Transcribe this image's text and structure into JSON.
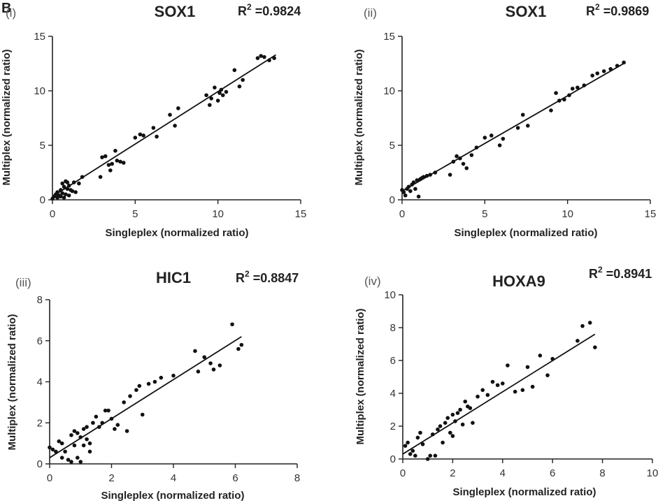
{
  "panel_letter": "B",
  "chart_data": [
    {
      "type": "scatter",
      "panel": "(i)",
      "title": "SOX1",
      "r2_label": "R",
      "r2_exp": "2",
      "r2_value": " =0.9824",
      "xlabel": "Singleplex (normalized ratio)",
      "ylabel": "Multiplex (normalized ratio)",
      "xlim": [
        0,
        15
      ],
      "ylim": [
        0,
        15
      ],
      "xticks": [
        0,
        5,
        10,
        15
      ],
      "yticks": [
        0,
        5,
        10,
        15
      ],
      "fit_line": {
        "x": [
          0.0,
          13.5
        ],
        "y": [
          0.3,
          13.3
        ]
      },
      "x": [
        0.0,
        0.1,
        0.2,
        0.3,
        0.3,
        0.4,
        0.5,
        0.5,
        0.6,
        0.6,
        0.7,
        0.7,
        0.8,
        0.8,
        0.9,
        0.9,
        1.0,
        1.0,
        1.1,
        1.2,
        1.3,
        1.4,
        1.6,
        1.8,
        2.9,
        3.0,
        3.2,
        3.4,
        3.5,
        3.6,
        3.8,
        3.9,
        4.1,
        4.3,
        5.0,
        5.3,
        5.5,
        6.1,
        6.3,
        7.1,
        7.4,
        7.6,
        9.3,
        9.5,
        9.6,
        9.8,
        10.0,
        10.1,
        10.2,
        10.3,
        10.5,
        11.0,
        11.3,
        11.5,
        12.4,
        12.6,
        12.8,
        13.1,
        13.4
      ],
      "y": [
        0.1,
        0.3,
        0.5,
        0.2,
        0.7,
        0.4,
        0.9,
        0.3,
        1.5,
        0.6,
        1.2,
        0.2,
        1.7,
        0.5,
        1.0,
        1.6,
        0.4,
        1.3,
        0.9,
        0.8,
        1.6,
        0.7,
        1.5,
        2.1,
        2.1,
        3.9,
        4.0,
        3.2,
        2.7,
        3.3,
        4.5,
        3.6,
        3.5,
        3.4,
        5.7,
        6.0,
        5.9,
        6.6,
        5.8,
        7.8,
        6.8,
        8.4,
        9.6,
        8.7,
        9.3,
        10.3,
        9.1,
        9.8,
        10.1,
        9.6,
        9.9,
        11.9,
        10.4,
        11.0,
        13.0,
        13.2,
        13.1,
        12.8,
        13.0
      ]
    },
    {
      "type": "scatter",
      "panel": "(ii)",
      "title": "SOX1",
      "r2_label": "R",
      "r2_exp": "2",
      "r2_value": " =0.9869",
      "xlabel": "Singleplex (normalized ratio)",
      "ylabel": "Multiplex (normalized ratio)",
      "xlim": [
        0,
        15
      ],
      "ylim": [
        0,
        15
      ],
      "xticks": [
        0,
        5,
        10,
        15
      ],
      "yticks": [
        0,
        5,
        10,
        15
      ],
      "fit_line": {
        "x": [
          0.0,
          13.5
        ],
        "y": [
          0.8,
          12.6
        ]
      },
      "x": [
        0.0,
        0.1,
        0.2,
        0.3,
        0.4,
        0.5,
        0.6,
        0.7,
        0.8,
        0.9,
        1.0,
        1.1,
        1.2,
        1.3,
        1.5,
        1.7,
        2.0,
        2.9,
        3.1,
        3.3,
        3.5,
        3.7,
        3.9,
        4.2,
        4.5,
        5.0,
        5.4,
        5.9,
        6.1,
        7.0,
        7.3,
        7.6,
        9.0,
        9.3,
        9.5,
        9.8,
        10.1,
        10.3,
        10.6,
        11.0,
        11.5,
        11.8,
        12.2,
        12.6,
        13.0,
        13.4
      ],
      "y": [
        0.9,
        0.7,
        0.4,
        1.0,
        1.2,
        0.8,
        1.4,
        1.6,
        1.0,
        1.8,
        0.3,
        1.9,
        2.0,
        2.1,
        2.2,
        2.3,
        2.5,
        2.3,
        3.5,
        4.0,
        3.8,
        3.3,
        2.9,
        4.1,
        4.8,
        5.7,
        5.9,
        5.0,
        5.6,
        6.6,
        7.8,
        6.8,
        8.2,
        9.8,
        9.1,
        9.2,
        9.6,
        10.2,
        10.3,
        10.5,
        11.4,
        11.6,
        11.8,
        12.0,
        12.3,
        12.6
      ]
    },
    {
      "type": "scatter",
      "panel": "(iii)",
      "title": "HIC1",
      "r2_label": "R",
      "r2_exp": "2",
      "r2_value": " =0.8847",
      "xlabel": "Singleplex (normalized ratio)",
      "ylabel": "Multiplex (normalized ratio)",
      "xlim": [
        0,
        8
      ],
      "ylim": [
        0,
        8
      ],
      "xticks": [
        0,
        2,
        4,
        6,
        8
      ],
      "yticks": [
        0,
        2,
        4,
        6,
        8
      ],
      "fit_line": {
        "x": [
          0.0,
          6.2
        ],
        "y": [
          0.3,
          6.2
        ]
      },
      "x": [
        0.0,
        0.1,
        0.2,
        0.3,
        0.4,
        0.4,
        0.5,
        0.6,
        0.7,
        0.7,
        0.8,
        0.8,
        0.9,
        0.9,
        1.0,
        1.0,
        1.1,
        1.1,
        1.2,
        1.2,
        1.3,
        1.3,
        1.4,
        1.5,
        1.6,
        1.7,
        1.8,
        1.9,
        2.0,
        2.1,
        2.2,
        2.4,
        2.5,
        2.6,
        2.8,
        2.9,
        3.0,
        3.2,
        3.4,
        3.6,
        4.0,
        4.7,
        4.8,
        5.0,
        5.2,
        5.3,
        5.5,
        5.9,
        6.1,
        6.2
      ],
      "y": [
        0.8,
        0.7,
        0.6,
        1.1,
        1.0,
        0.3,
        0.6,
        0.2,
        1.4,
        0.1,
        1.6,
        0.9,
        1.5,
        0.3,
        1.3,
        0.1,
        1.7,
        0.9,
        1.8,
        1.2,
        1.0,
        0.6,
        2.0,
        2.3,
        1.8,
        2.0,
        2.6,
        2.6,
        2.2,
        1.7,
        1.9,
        3.0,
        1.6,
        3.3,
        3.6,
        3.8,
        2.4,
        3.9,
        4.0,
        4.2,
        4.3,
        5.5,
        4.5,
        5.2,
        4.9,
        4.6,
        4.8,
        6.8,
        5.6,
        5.8
      ]
    },
    {
      "type": "scatter",
      "panel": "(iv)",
      "title": "HOXA9",
      "r2_label": "R",
      "r2_exp": "2",
      "r2_value": " =0.8941",
      "xlabel": "Singleplex (normalized ratio)",
      "ylabel": "Multiplex (normalized ratio)",
      "xlim": [
        0,
        10
      ],
      "ylim": [
        0,
        10
      ],
      "xticks": [
        0,
        2,
        4,
        6,
        8,
        10
      ],
      "yticks": [
        0,
        2,
        4,
        6,
        8,
        10
      ],
      "fit_line": {
        "x": [
          0.0,
          7.7
        ],
        "y": [
          0.3,
          7.6
        ]
      },
      "x": [
        0.1,
        0.2,
        0.3,
        0.4,
        0.5,
        0.6,
        0.7,
        0.8,
        1.0,
        1.1,
        1.2,
        1.3,
        1.4,
        1.5,
        1.6,
        1.7,
        1.8,
        1.9,
        2.0,
        2.0,
        2.1,
        2.2,
        2.3,
        2.4,
        2.5,
        2.6,
        2.7,
        2.8,
        3.0,
        3.2,
        3.4,
        3.6,
        3.8,
        4.0,
        4.2,
        4.5,
        4.8,
        5.0,
        5.2,
        5.5,
        5.8,
        6.0,
        7.0,
        7.2,
        7.5,
        7.7
      ],
      "y": [
        0.8,
        1.0,
        0.3,
        0.5,
        0.2,
        1.3,
        1.6,
        0.9,
        0.0,
        0.2,
        1.5,
        0.2,
        1.8,
        2.0,
        1.0,
        2.2,
        2.5,
        1.6,
        2.7,
        1.4,
        2.3,
        2.8,
        3.0,
        2.1,
        3.5,
        3.2,
        3.1,
        2.2,
        3.8,
        4.2,
        3.9,
        4.7,
        4.5,
        4.6,
        5.7,
        4.1,
        4.2,
        5.6,
        4.4,
        6.3,
        5.1,
        6.1,
        7.2,
        8.1,
        8.3,
        6.8
      ]
    }
  ]
}
